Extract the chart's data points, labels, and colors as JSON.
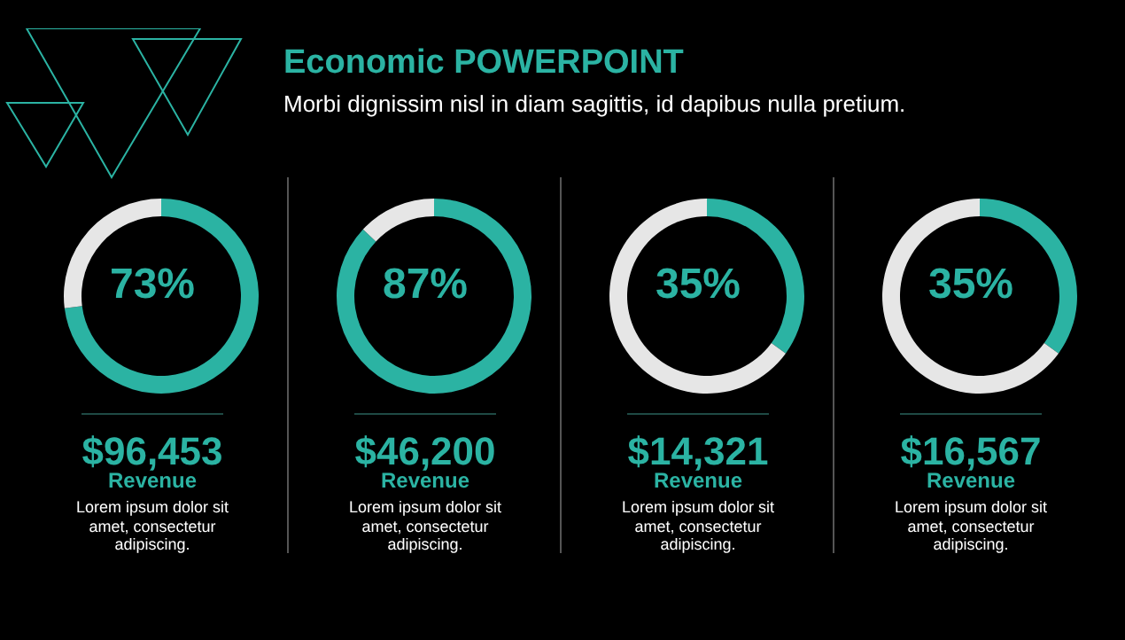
{
  "chart_data": [
    {
      "type": "other",
      "title": "Economic POWERPOINT",
      "subtitle": "Morbi dignissim nisl in diam sagittis, id dapibus nulla pretium."
    },
    {
      "type": "donut",
      "categories": [
        null,
        null
      ],
      "values": [
        73,
        27
      ],
      "colors": [
        "#2bb3a3",
        "#e6e6e6"
      ],
      "annotations": [
        "73%",
        "$96,453",
        "Revenue",
        "Lorem ipsum dolor sit amet, consectetur adipiscing."
      ]
    },
    {
      "type": "donut",
      "categories": [
        null,
        null
      ],
      "values": [
        87,
        13
      ],
      "colors": [
        "#2bb3a3",
        "#e6e6e6"
      ],
      "annotations": [
        "87%",
        "$46,200",
        "Revenue",
        "Lorem ipsum dolor sit amet, consectetur adipiscing."
      ]
    },
    {
      "type": "donut",
      "categories": [
        null,
        null
      ],
      "values": [
        35,
        65
      ],
      "colors": [
        "#2bb3a3",
        "#e6e6e6"
      ],
      "annotations": [
        "35%",
        "$14,321",
        "Revenue",
        "Lorem ipsum dolor sit amet, consectetur adipiscing."
      ]
    },
    {
      "type": "donut",
      "categories": [
        null,
        null
      ],
      "values": [
        35,
        65
      ],
      "colors": [
        "#2bb3a3",
        "#e6e6e6"
      ],
      "annotations": [
        "35%",
        "$16,567",
        "Revenue",
        "Lorem ipsum dolor sit amet, consectetur adipiscing."
      ]
    }
  ]
}
